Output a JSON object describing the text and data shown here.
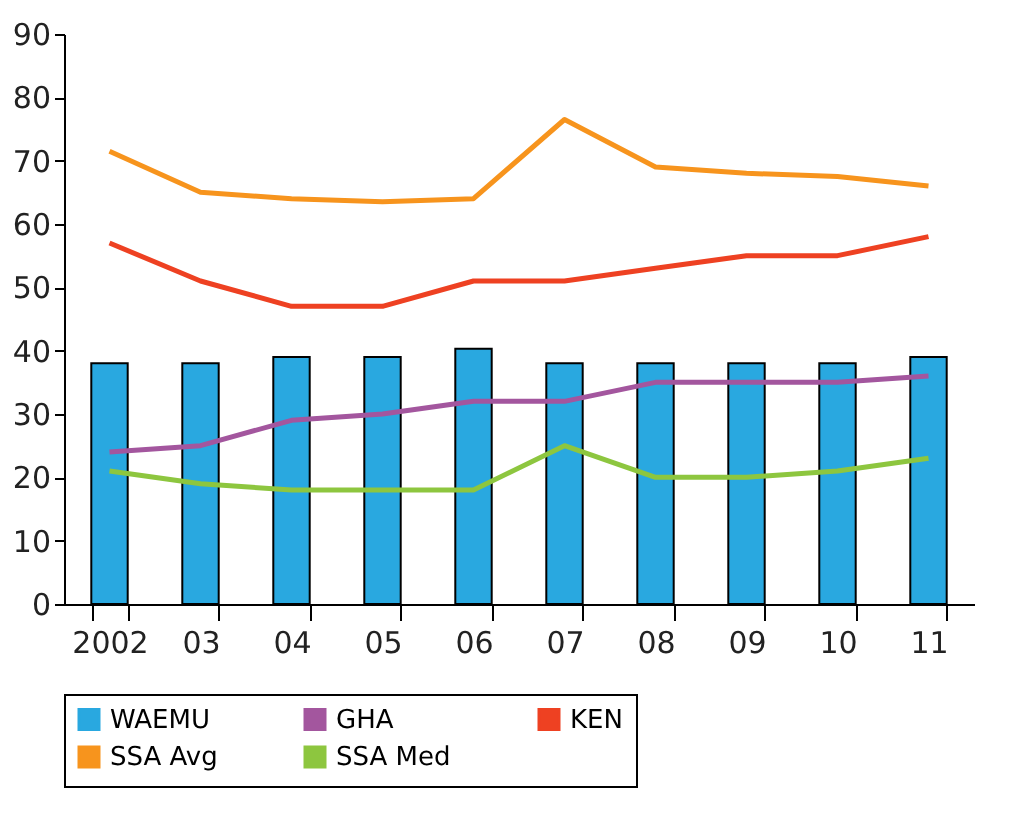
{
  "chart_data": {
    "type": "bar",
    "categories": [
      "2002",
      "03",
      "04",
      "05",
      "06",
      "07",
      "08",
      "09",
      "10",
      "11"
    ],
    "ylim": [
      0,
      90
    ],
    "yticks": [
      0,
      10,
      20,
      30,
      40,
      50,
      60,
      70,
      80,
      90
    ],
    "grid": false,
    "legend": "bottom",
    "series": [
      {
        "name": "WAEMU",
        "color": "#29a8e0",
        "values": [
          38,
          38,
          39,
          39,
          40.3,
          38,
          38,
          38,
          38,
          39
        ]
      },
      {
        "name": "GHA",
        "type": "line",
        "color": "#a3569e",
        "values": [
          24,
          25,
          29,
          30,
          32,
          32,
          35,
          35,
          35,
          36
        ]
      },
      {
        "name": "KEN",
        "type": "line",
        "color": "#ee4122",
        "values": [
          57,
          51,
          47,
          47,
          51,
          51,
          53,
          55,
          55,
          58
        ]
      },
      {
        "name": "SSA Avg",
        "type": "line",
        "color": "#f7941d",
        "values": [
          71.5,
          65,
          64,
          63.5,
          64,
          76.5,
          69,
          68,
          67.5,
          66
        ]
      },
      {
        "name": "SSA Med",
        "type": "line",
        "color": "#8dc63f",
        "values": [
          21,
          19,
          18,
          18,
          18,
          25,
          20,
          20,
          21,
          23
        ]
      }
    ]
  }
}
